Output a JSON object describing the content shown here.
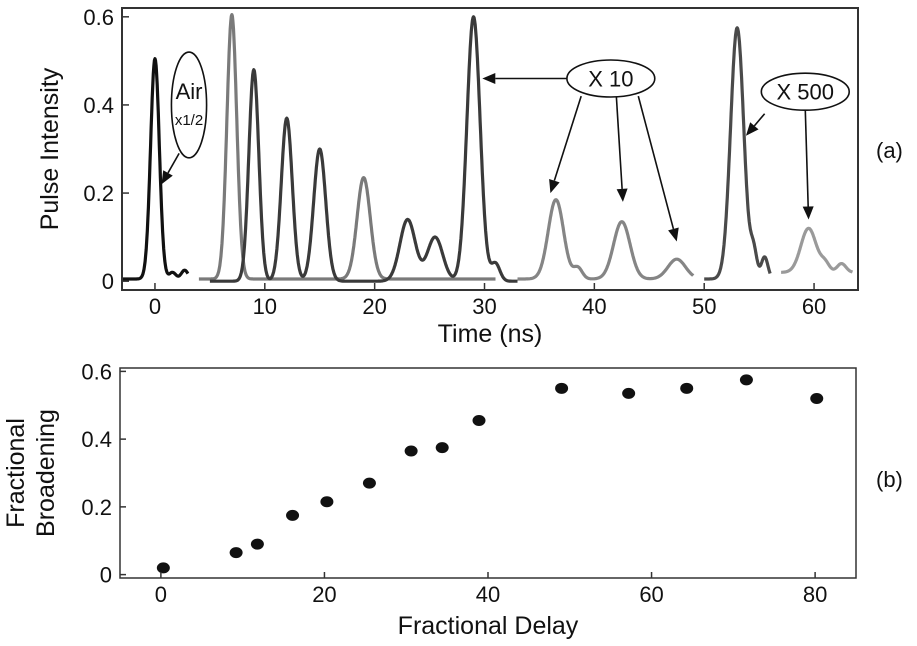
{
  "chart_data": [
    {
      "type": "line",
      "panel_label": "(a)",
      "xlabel": "Time (ns)",
      "ylabel": "Pulse Intensity",
      "xlim": [
        -3,
        64
      ],
      "ylim": [
        -0.02,
        0.62
      ],
      "xticks": [
        0,
        10,
        20,
        30,
        40,
        50,
        60
      ],
      "yticks": [
        0,
        0.2,
        0.4,
        0.6
      ],
      "ytick_labels": [
        "0",
        "0.2",
        "0.4",
        "0.6"
      ],
      "grid": false,
      "series": [
        {
          "color": "#111111",
          "x_range": [
            -3,
            3
          ],
          "baseline": 0.005,
          "peaks": [
            {
              "t": 0,
              "a": 0.5,
              "w": 0.4
            },
            {
              "t": 1.6,
              "a": 0.015,
              "w": 0.3
            },
            {
              "t": 2.7,
              "a": 0.02,
              "w": 0.3
            }
          ]
        },
        {
          "color": "#7a7a7a",
          "x_range": [
            4,
            31
          ],
          "baseline": 0.005,
          "peaks": [
            {
              "t": 7,
              "a": 0.6,
              "w": 0.45
            },
            {
              "t": 19,
              "a": 0.23,
              "w": 0.6
            }
          ]
        },
        {
          "color": "#3a3a3a",
          "x_range": [
            5,
            33
          ],
          "baseline": 0.0,
          "peaks": [
            {
              "t": 9,
              "a": 0.48,
              "w": 0.45
            },
            {
              "t": 12,
              "a": 0.37,
              "w": 0.5
            },
            {
              "t": 15,
              "a": 0.3,
              "w": 0.55
            },
            {
              "t": 23,
              "a": 0.14,
              "w": 0.7
            },
            {
              "t": 25.5,
              "a": 0.1,
              "w": 0.7
            },
            {
              "t": 29,
              "a": 0.6,
              "w": 0.6
            },
            {
              "t": 31,
              "a": 0.04,
              "w": 0.4
            }
          ]
        },
        {
          "color": "#858585",
          "x_range": [
            33,
            49
          ],
          "baseline": 0.005,
          "peaks": [
            {
              "t": 36.5,
              "a": 0.18,
              "w": 0.7
            },
            {
              "t": 38.5,
              "a": 0.025,
              "w": 0.4
            },
            {
              "t": 42.5,
              "a": 0.13,
              "w": 0.75
            },
            {
              "t": 47.5,
              "a": 0.045,
              "w": 0.8
            }
          ]
        },
        {
          "color": "#4a4a4a",
          "x_range": [
            50,
            56
          ],
          "baseline": 0.005,
          "peaks": [
            {
              "t": 53,
              "a": 0.57,
              "w": 0.6
            },
            {
              "t": 54.5,
              "a": 0.06,
              "w": 0.3
            },
            {
              "t": 55.5,
              "a": 0.05,
              "w": 0.3
            }
          ]
        },
        {
          "color": "#9a9a9a",
          "x_range": [
            57,
            63.5
          ],
          "baseline": 0.02,
          "peaks": [
            {
              "t": 59.5,
              "a": 0.1,
              "w": 0.7
            },
            {
              "t": 61,
              "a": 0.02,
              "w": 0.4
            },
            {
              "t": 62.5,
              "a": 0.02,
              "w": 0.4
            }
          ]
        }
      ],
      "annotations": [
        {
          "text": "Air",
          "subtext": "x1/2",
          "anchor": [
            3.1,
            0.4
          ],
          "rx_data": 1.6,
          "ry_data": 0.12,
          "arrows": [
            {
              "from": [
                2.2,
                0.29
              ],
              "to": [
                0.6,
                0.22
              ]
            }
          ]
        },
        {
          "text": "X 10",
          "anchor": [
            41.5,
            0.46
          ],
          "rx_data": 4.0,
          "ry_data": 0.042,
          "arrows": [
            {
              "from": [
                37.5,
                0.46
              ],
              "to": [
                29.8,
                0.46
              ]
            },
            {
              "from": [
                38.8,
                0.42
              ],
              "to": [
                36.0,
                0.2
              ]
            },
            {
              "from": [
                42.0,
                0.42
              ],
              "to": [
                42.6,
                0.18
              ]
            },
            {
              "from": [
                44.0,
                0.42
              ],
              "to": [
                47.5,
                0.09
              ]
            }
          ]
        },
        {
          "text": "X 500",
          "anchor": [
            59.2,
            0.43
          ],
          "rx_data": 4.0,
          "ry_data": 0.042,
          "arrows": [
            {
              "from": [
                55.5,
                0.38
              ],
              "to": [
                53.8,
                0.33
              ]
            },
            {
              "from": [
                59.2,
                0.39
              ],
              "to": [
                59.5,
                0.14
              ]
            }
          ]
        }
      ]
    },
    {
      "type": "scatter",
      "panel_label": "(b)",
      "xlabel": "Fractional Delay",
      "ylabel_lines": [
        "Fractional",
        "Broadening"
      ],
      "xlim": [
        -5,
        85
      ],
      "ylim": [
        -0.01,
        0.61
      ],
      "xticks": [
        0,
        20,
        40,
        60,
        80
      ],
      "yticks": [
        0,
        0.2,
        0.4,
        0.6
      ],
      "ytick_labels": [
        "0",
        "0.2",
        "0.4",
        "0.6"
      ],
      "grid": false,
      "points": [
        {
          "x": 0.3,
          "y": 0.02
        },
        {
          "x": 9.2,
          "y": 0.065
        },
        {
          "x": 11.8,
          "y": 0.09
        },
        {
          "x": 16.1,
          "y": 0.175
        },
        {
          "x": 20.3,
          "y": 0.215
        },
        {
          "x": 25.5,
          "y": 0.27
        },
        {
          "x": 30.6,
          "y": 0.365
        },
        {
          "x": 34.4,
          "y": 0.375
        },
        {
          "x": 38.9,
          "y": 0.455
        },
        {
          "x": 49.0,
          "y": 0.55
        },
        {
          "x": 57.2,
          "y": 0.535
        },
        {
          "x": 64.3,
          "y": 0.55
        },
        {
          "x": 71.6,
          "y": 0.575
        },
        {
          "x": 80.2,
          "y": 0.52
        }
      ]
    }
  ]
}
